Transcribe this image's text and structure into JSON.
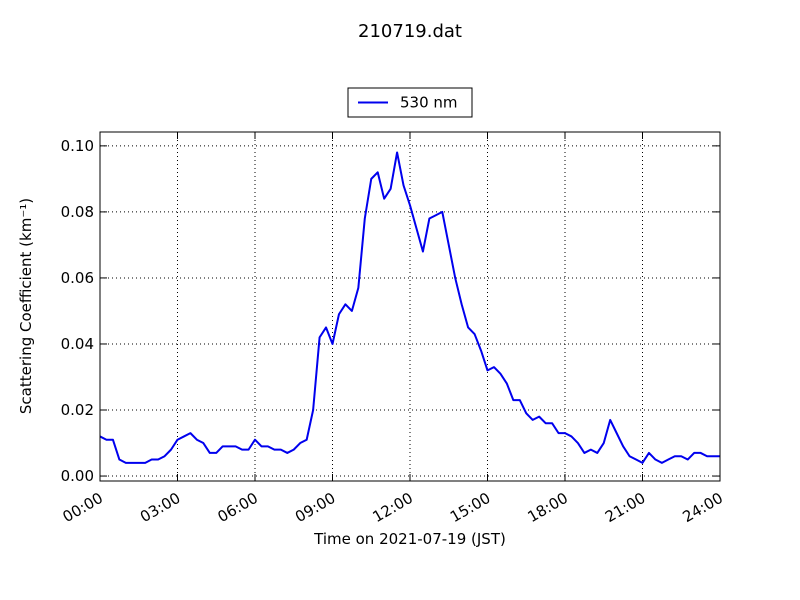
{
  "chart_data": {
    "type": "line",
    "title": "210719.dat",
    "xlabel": "Time on 2021-07-19 (JST)",
    "ylabel": "Scattering Coefficient (km⁻¹)",
    "x": [
      0,
      0.25,
      0.5,
      0.75,
      1,
      1.25,
      1.5,
      1.75,
      2,
      2.25,
      2.5,
      2.75,
      3,
      3.25,
      3.5,
      3.75,
      4,
      4.25,
      4.5,
      4.75,
      5,
      5.25,
      5.5,
      5.75,
      6,
      6.25,
      6.5,
      6.75,
      7,
      7.25,
      7.5,
      7.75,
      8,
      8.25,
      8.5,
      8.75,
      9,
      9.25,
      9.5,
      9.75,
      10,
      10.25,
      10.5,
      10.75,
      11,
      11.25,
      11.5,
      11.75,
      12,
      12.25,
      12.5,
      12.75,
      13,
      13.25,
      13.5,
      13.75,
      14,
      14.25,
      14.5,
      14.75,
      15,
      15.25,
      15.5,
      15.75,
      16,
      16.25,
      16.5,
      16.75,
      17,
      17.25,
      17.5,
      17.75,
      18,
      18.25,
      18.5,
      18.75,
      19,
      19.25,
      19.5,
      19.75,
      20,
      20.25,
      20.5,
      20.75,
      21,
      21.25,
      21.5,
      21.75,
      22,
      22.25,
      22.5,
      22.75,
      23,
      23.25,
      23.5,
      23.75,
      24
    ],
    "series": [
      {
        "name": "530 nm",
        "color": "#0000ee",
        "values": [
          0.012,
          0.011,
          0.011,
          0.005,
          0.004,
          0.004,
          0.004,
          0.004,
          0.005,
          0.005,
          0.006,
          0.008,
          0.011,
          0.012,
          0.013,
          0.011,
          0.01,
          0.007,
          0.007,
          0.009,
          0.009,
          0.009,
          0.008,
          0.008,
          0.011,
          0.009,
          0.009,
          0.008,
          0.008,
          0.007,
          0.008,
          0.01,
          0.011,
          0.02,
          0.042,
          0.045,
          0.04,
          0.049,
          0.052,
          0.05,
          0.057,
          0.078,
          0.09,
          0.092,
          0.084,
          0.087,
          0.098,
          0.088,
          0.082,
          0.075,
          0.068,
          0.078,
          0.079,
          0.08,
          0.07,
          0.06,
          0.052,
          0.045,
          0.043,
          0.038,
          0.032,
          0.033,
          0.031,
          0.028,
          0.023,
          0.023,
          0.019,
          0.017,
          0.018,
          0.016,
          0.016,
          0.013,
          0.013,
          0.012,
          0.01,
          0.007,
          0.008,
          0.007,
          0.01,
          0.017,
          0.013,
          0.009,
          0.006,
          0.005,
          0.004,
          0.007,
          0.005,
          0.004,
          0.005,
          0.006,
          0.006,
          0.005,
          0.007,
          0.007,
          0.006,
          0.006,
          0.006
        ]
      }
    ],
    "xlim": [
      0,
      24
    ],
    "xticks": [
      {
        "value": 0,
        "label": "00:00"
      },
      {
        "value": 3,
        "label": "03:00"
      },
      {
        "value": 6,
        "label": "06:00"
      },
      {
        "value": 9,
        "label": "09:00"
      },
      {
        "value": 12,
        "label": "12:00"
      },
      {
        "value": 15,
        "label": "15:00"
      },
      {
        "value": 18,
        "label": "18:00"
      },
      {
        "value": 21,
        "label": "21:00"
      },
      {
        "value": 24,
        "label": "24:00"
      }
    ],
    "ylim": [
      -0.0015,
      0.1042
    ],
    "yticks": [
      {
        "value": 0,
        "label": "0.00"
      },
      {
        "value": 0.02,
        "label": "0.02"
      },
      {
        "value": 0.04,
        "label": "0.04"
      },
      {
        "value": 0.06,
        "label": "0.06"
      },
      {
        "value": 0.08,
        "label": "0.08"
      },
      {
        "value": 0.1,
        "label": "0.10"
      }
    ],
    "grid": true,
    "legend": "upper center"
  }
}
